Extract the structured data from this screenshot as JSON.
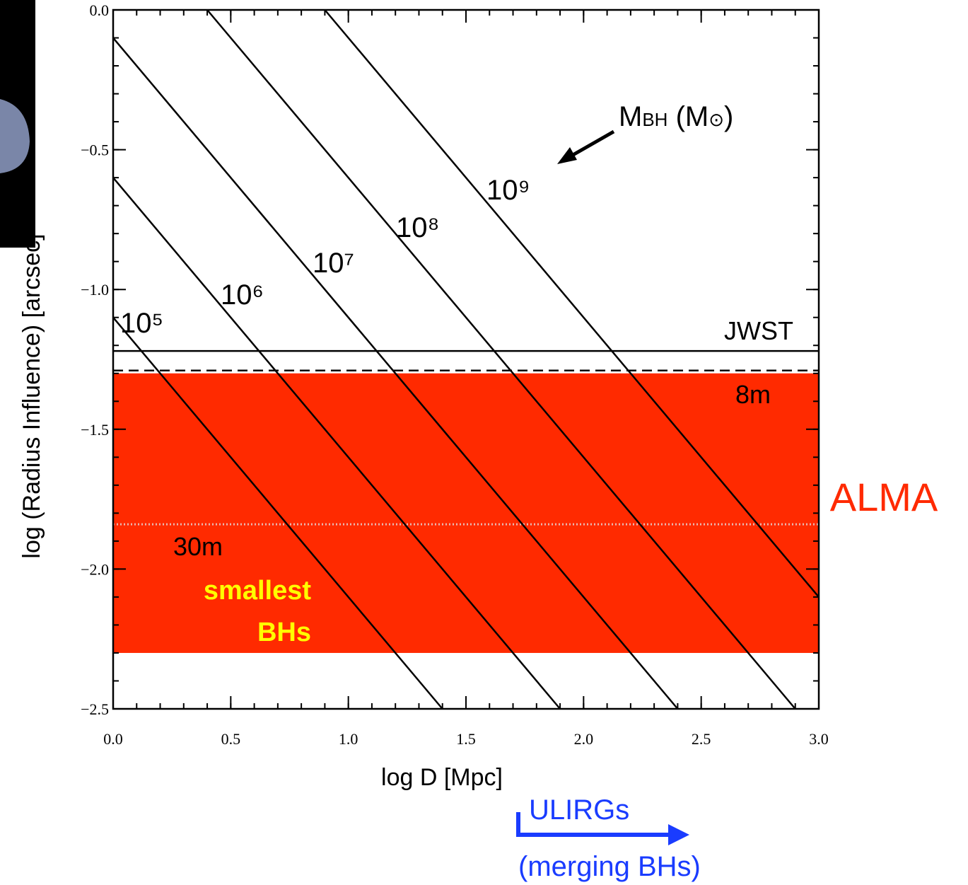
{
  "chart_data": {
    "type": "line",
    "xlabel": "log D [Mpc]",
    "ylabel": "log (Radius Influence) [arcsec]",
    "xlim": [
      0,
      3
    ],
    "ylim": [
      -2.5,
      0
    ],
    "xticks": [
      {
        "value": 0,
        "label": "0.0"
      },
      {
        "value": 0.5,
        "label": "0.5"
      },
      {
        "value": 1,
        "label": "1.0"
      },
      {
        "value": 1.5,
        "label": "1.5"
      },
      {
        "value": 2,
        "label": "2.0"
      },
      {
        "value": 2.5,
        "label": "2.5"
      },
      {
        "value": 3,
        "label": "3.0"
      }
    ],
    "yticks": [
      {
        "value": 0,
        "label": "0.0"
      },
      {
        "value": -0.5,
        "label": "−0.5"
      },
      {
        "value": -1,
        "label": "−1.0"
      },
      {
        "value": -1.5,
        "label": "−1.5"
      },
      {
        "value": -2,
        "label": "−2.0"
      },
      {
        "value": -2.5,
        "label": "−2.5"
      }
    ],
    "xminor_step": 0.1,
    "yminor_step": 0.1,
    "series": [
      {
        "name": "10⁵",
        "color": "#000000",
        "x": [
          0,
          1.4
        ],
        "values": [
          -1.1,
          -2.5
        ]
      },
      {
        "name": "10⁶",
        "color": "#000000",
        "x": [
          0,
          1.9
        ],
        "values": [
          -0.6,
          -2.5
        ]
      },
      {
        "name": "10⁷",
        "color": "#000000",
        "x": [
          0,
          2.4
        ],
        "values": [
          -0.1,
          -2.5
        ]
      },
      {
        "name": "10⁸",
        "color": "#000000",
        "x": [
          0.4,
          2.9
        ],
        "values": [
          0,
          -2.5
        ]
      },
      {
        "name": "10⁹",
        "color": "#000000",
        "x": [
          0.9,
          3.0
        ],
        "values": [
          0,
          -2.1
        ]
      }
    ],
    "band": {
      "name": "ALMA",
      "range": [
        -1.3,
        -2.3
      ],
      "color": "#ff2a00"
    },
    "hlines": [
      {
        "name": "JWST",
        "y": -1.22,
        "style": "solid",
        "color": "#000000"
      },
      {
        "name": "8m",
        "y": -1.29,
        "style": "dashed",
        "color": "#000000"
      },
      {
        "name": "30m",
        "y": -1.84,
        "style": "dotted",
        "color": "#e8b8b0"
      }
    ],
    "mass_label": [
      "M",
      "BH",
      " (M",
      "⊙",
      ")"
    ],
    "notes": [
      "smallest",
      "BHs"
    ],
    "ulirg_label": [
      "ULIRGs",
      "(merging BHs)"
    ]
  }
}
